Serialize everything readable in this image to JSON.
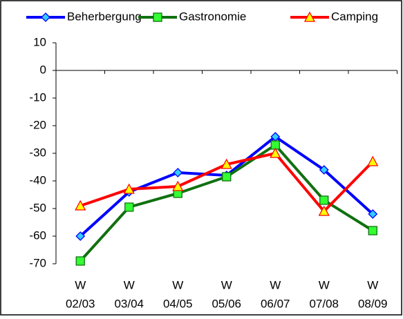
{
  "chart_data": {
    "type": "line",
    "categories": [
      [
        "W",
        "02/03"
      ],
      [
        "W",
        "03/04"
      ],
      [
        "W",
        "04/05"
      ],
      [
        "W",
        "05/06"
      ],
      [
        "W",
        "06/07"
      ],
      [
        "W",
        "07/08"
      ],
      [
        "W",
        "08/09"
      ]
    ],
    "series": [
      {
        "name": "Beherbergung",
        "color": "#0000ff",
        "marker": "diamond",
        "marker_fill": "#33ccff",
        "values": [
          -60,
          -44,
          -37,
          -38,
          -24,
          -36,
          -52
        ]
      },
      {
        "name": "Gastronomie",
        "color": "#107010",
        "marker": "square",
        "marker_fill": "#33ff33",
        "values": [
          -69,
          -49.5,
          -44.5,
          -38.5,
          -27,
          -47,
          -58
        ]
      },
      {
        "name": "Camping",
        "color": "#ff0000",
        "marker": "triangle",
        "marker_fill": "#ffff00",
        "values": [
          -49,
          -43,
          -42,
          -34,
          -30,
          -51,
          -33
        ]
      }
    ],
    "ylim": [
      -70,
      10
    ],
    "yticks": [
      -70,
      -60,
      -50,
      -40,
      -30,
      -20,
      -10,
      0,
      10
    ],
    "grid": false,
    "legend": "top"
  }
}
